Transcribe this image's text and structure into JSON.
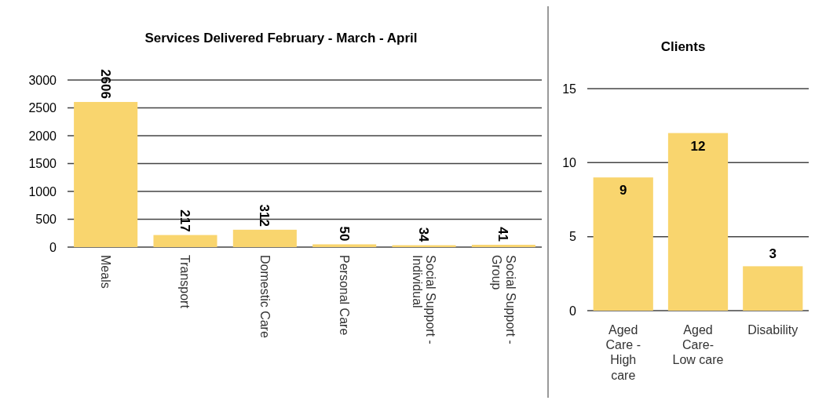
{
  "chart_data": [
    {
      "type": "bar",
      "title": "Services Delivered February - March - April",
      "categories": [
        "Meals",
        "Transport",
        "Domestic Care",
        "Personal Care",
        "Social Support - Individual",
        "Social Support - Group"
      ],
      "values": [
        2606,
        217,
        312,
        50,
        34,
        41
      ],
      "color": "#f9d56e",
      "ylim": [
        0,
        3000
      ],
      "yticks": [
        0,
        500,
        1000,
        1500,
        2000,
        2500,
        3000
      ],
      "grid": "y",
      "data_labels": true
    },
    {
      "type": "bar",
      "title": "Clients",
      "categories": [
        "Aged Care - High care",
        "Aged Care- Low care",
        "Disability"
      ],
      "values": [
        9,
        12,
        3
      ],
      "color": "#f9d56e",
      "ylim": [
        0,
        15
      ],
      "yticks": [
        0,
        5,
        10,
        15
      ],
      "grid": "y",
      "data_labels": true
    }
  ]
}
